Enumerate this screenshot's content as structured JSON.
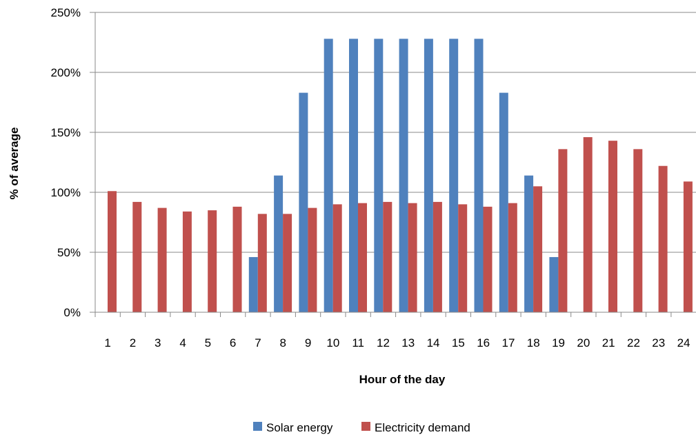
{
  "chart_data": {
    "type": "bar",
    "xlabel": "Hour of the day",
    "ylabel": "% of average",
    "ylim": [
      0,
      250
    ],
    "y_unit": "%",
    "y_ticks": [
      "0%",
      "50%",
      "100%",
      "150%",
      "200%",
      "250%"
    ],
    "categories": [
      "1",
      "2",
      "3",
      "4",
      "5",
      "6",
      "7",
      "8",
      "9",
      "10",
      "11",
      "12",
      "13",
      "14",
      "15",
      "16",
      "17",
      "18",
      "19",
      "20",
      "21",
      "22",
      "23",
      "24"
    ],
    "grid": true,
    "legend_position": "bottom",
    "series": [
      {
        "name": "Solar energy",
        "color": "#4F81BD",
        "values": [
          0,
          0,
          0,
          0,
          0,
          0,
          46,
          114,
          183,
          228,
          228,
          228,
          228,
          228,
          228,
          228,
          183,
          114,
          46,
          0,
          0,
          0,
          0,
          0
        ]
      },
      {
        "name": "Electricity demand",
        "color": "#C0504D",
        "values": [
          101,
          92,
          87,
          84,
          85,
          88,
          82,
          82,
          87,
          90,
          91,
          92,
          91,
          92,
          90,
          88,
          91,
          105,
          136,
          146,
          143,
          136,
          122,
          109
        ]
      }
    ]
  }
}
